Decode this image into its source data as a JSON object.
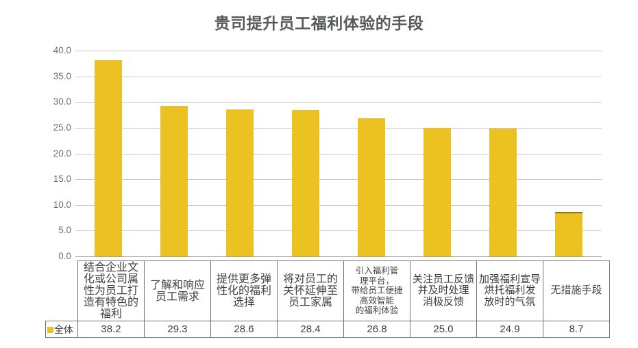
{
  "page": {
    "background": "#ffffff"
  },
  "chart_data": {
    "type": "bar",
    "title": "贵司提升员工福利体验的手段",
    "series": [
      {
        "name": "全体",
        "values": [
          38.2,
          29.3,
          28.6,
          28.4,
          26.8,
          25.0,
          24.9,
          8.7
        ]
      }
    ],
    "categories": [
      "结合企业文化或公司属性为员工打造有特色的福利",
      "了解和响应员工需求",
      "提供更多弹性化的福利选择",
      "将对员工的关怀延伸至员工家属",
      "引入福利管理平台，带给员工便捷高效智能的福利体验",
      "关注员工反馈并及时处理消极反馈",
      "加强福利宣导烘托福利发放时的气氛",
      "无措施手段"
    ],
    "display_labels": [
      "结合企业文\n化或公司属\n性为员工打\n造有特色的\n福利",
      "了解和响应\n员工需求",
      "提供更多弹\n性化的福利\n选择",
      "将对员工的\n关怀延伸至\n员工家属",
      "引入福利管\n理平台，\n带给员工便捷\n高效智能\n的福利体验",
      "关注员工反馈\n并及时处理\n消极反馈",
      "加强福利宣导\n烘托福利发\n放时的气氛",
      "无措施手段"
    ],
    "xlabel": "",
    "ylabel": "",
    "ylim": [
      0,
      40
    ],
    "y_ticks": [
      "40.0",
      "35.0",
      "30.0",
      "25.0",
      "20.0",
      "15.0",
      "10.0",
      "5.0",
      "0.0"
    ],
    "grid": true,
    "legend_position": "table-left",
    "bar_color": "#ECC222",
    "value_format_decimals": 1
  }
}
